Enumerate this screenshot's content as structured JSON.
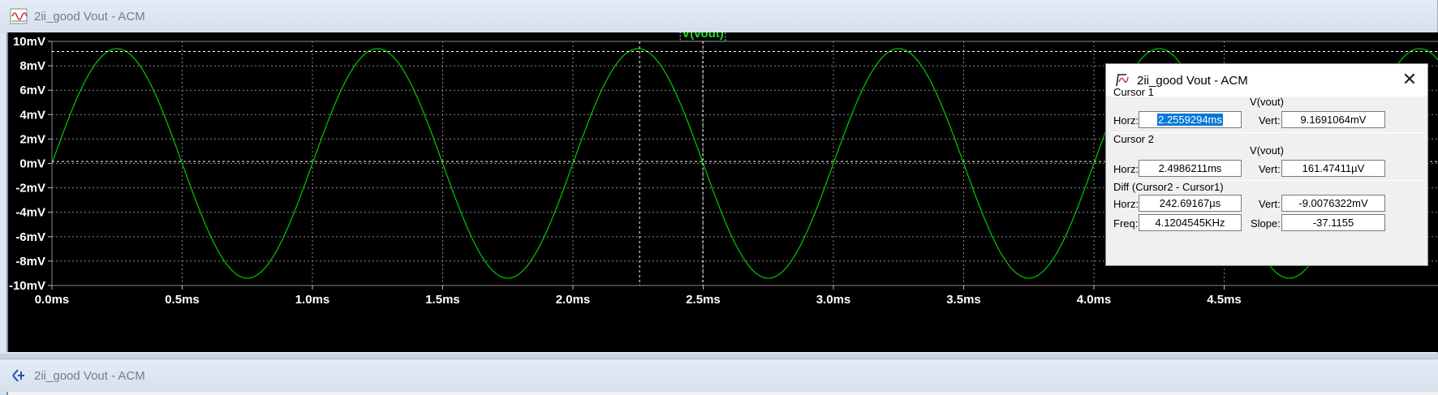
{
  "window1": {
    "title": "2ii_good Vout - ACM",
    "icon": "waveform-window-icon"
  },
  "window2": {
    "title": "2ii_good Vout - ACM",
    "icon": "schematic-window-icon"
  },
  "chart_data": {
    "type": "line",
    "trace_label": "V(vout)",
    "series": [
      {
        "name": "V(vout)",
        "color": "#00cc00",
        "function": "sine",
        "amplitude_mV": 9.4,
        "frequency_kHz": 1.0,
        "phase_deg": 0
      }
    ],
    "xlim_ms": [
      0,
      4.5
    ],
    "ylim_mV": [
      -10,
      10
    ],
    "x_ticks": [
      "0.0ms",
      "0.5ms",
      "1.0ms",
      "1.5ms",
      "2.0ms",
      "2.5ms",
      "3.0ms",
      "3.5ms",
      "4.0ms",
      "4.5ms"
    ],
    "y_ticks": [
      "10mV",
      "8mV",
      "6mV",
      "4mV",
      "2mV",
      "0mV",
      "-2mV",
      "-4mV",
      "-6mV",
      "-8mV",
      "-10mV"
    ],
    "grid": true,
    "cursor1": {
      "x_ms": 2.2559294,
      "y_mV": 9.1691064
    },
    "cursor2": {
      "x_ms": 2.4986211,
      "y_mV": 0.16147411
    }
  },
  "dialog": {
    "title": "2ii_good Vout - ACM",
    "close_glyph": "✕",
    "cursor1": {
      "label": "Cursor 1",
      "trace": "V(vout)",
      "horz_label": "Horz:",
      "horz": "2.2559294ms",
      "vert_label": "Vert:",
      "vert": "9.1691064mV"
    },
    "cursor2": {
      "label": "Cursor 2",
      "trace": "V(vout)",
      "horz_label": "Horz:",
      "horz": "2.4986211ms",
      "vert_label": "Vert:",
      "vert": "161.47411µV"
    },
    "diff": {
      "label": "Diff (Cursor2 - Cursor1)",
      "horz_label": "Horz:",
      "horz": "242.69167µs",
      "vert_label": "Vert:",
      "vert": "-9.0076322mV",
      "freq_label": "Freq:",
      "freq": "4.1204545KHz",
      "slope_label": "Slope:",
      "slope": "-37.1155"
    }
  }
}
